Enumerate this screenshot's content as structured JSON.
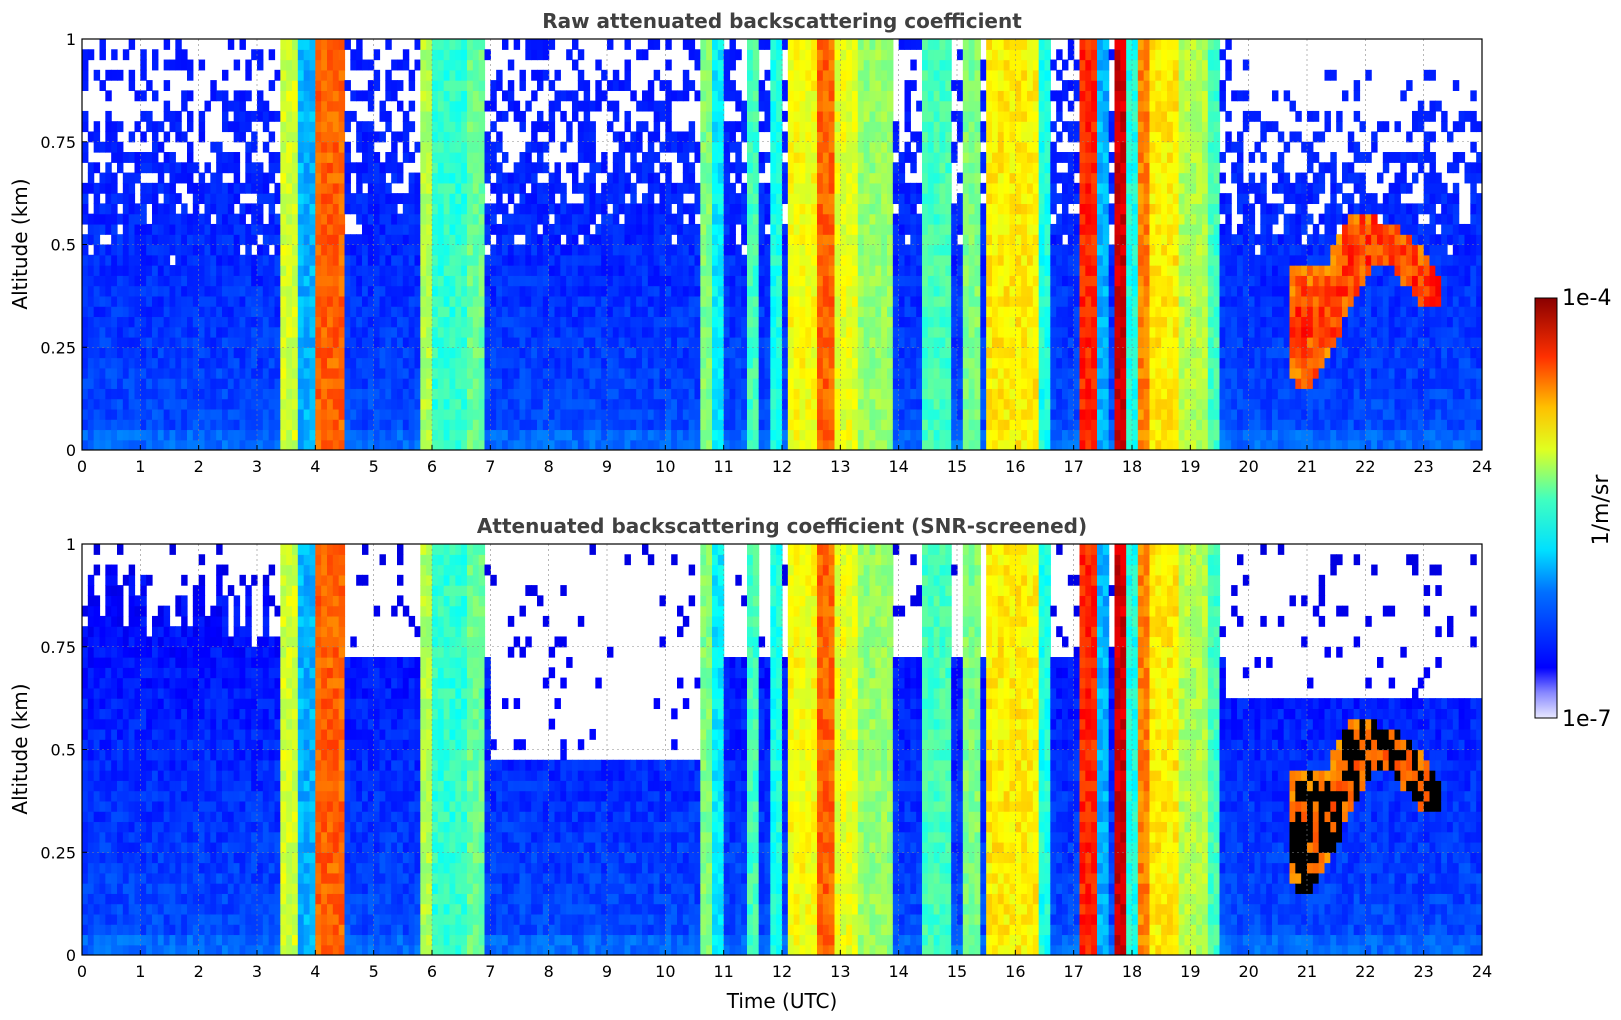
{
  "chart_data": [
    {
      "type": "heatmap",
      "title": "Raw attenuated backscattering coefficient",
      "xlabel": "",
      "ylabel": "Altitude (km)",
      "xlim": [
        0,
        24
      ],
      "ylim": [
        0,
        1
      ],
      "xticks": [
        "0",
        "1",
        "2",
        "3",
        "4",
        "5",
        "6",
        "7",
        "8",
        "9",
        "10",
        "11",
        "12",
        "13",
        "14",
        "15",
        "16",
        "17",
        "18",
        "19",
        "20",
        "21",
        "22",
        "23",
        "24"
      ],
      "yticks": [
        "0",
        "0.25",
        "0.5",
        "0.75",
        "1"
      ],
      "grid": true,
      "screened": false
    },
    {
      "type": "heatmap",
      "title": "Attenuated backscattering coefficient (SNR-screened)",
      "xlabel": "Time (UTC)",
      "ylabel": "Altitude (km)",
      "xlim": [
        0,
        24
      ],
      "ylim": [
        0,
        1
      ],
      "xticks": [
        "0",
        "1",
        "2",
        "3",
        "4",
        "5",
        "6",
        "7",
        "8",
        "9",
        "10",
        "11",
        "12",
        "13",
        "14",
        "15",
        "16",
        "17",
        "18",
        "19",
        "20",
        "21",
        "22",
        "23",
        "24"
      ],
      "yticks": [
        "0",
        "0.25",
        "0.5",
        "0.75",
        "1"
      ],
      "grid": true,
      "screened": true
    }
  ],
  "colorbar": {
    "label": "1/m/sr",
    "max_label": "1e-4",
    "min_label": "1e-7",
    "scale": "log",
    "range": [
      1e-07,
      0.0001
    ],
    "colormap": "jet"
  },
  "events": {
    "columns": [
      {
        "t0": 3.4,
        "t1": 3.7,
        "level": 0.58
      },
      {
        "t0": 3.7,
        "t1": 4.0,
        "level": 0.3
      },
      {
        "t0": 4.0,
        "t1": 4.5,
        "level": 0.78
      },
      {
        "t0": 5.8,
        "t1": 6.0,
        "level": 0.55
      },
      {
        "t0": 6.0,
        "t1": 6.6,
        "level": 0.42
      },
      {
        "t0": 6.6,
        "t1": 6.9,
        "level": 0.48
      },
      {
        "t0": 10.6,
        "t1": 10.8,
        "level": 0.5
      },
      {
        "t0": 10.8,
        "t1": 11.0,
        "level": 0.36
      },
      {
        "t0": 11.4,
        "t1": 11.6,
        "level": 0.44
      },
      {
        "t0": 11.8,
        "t1": 12.0,
        "level": 0.4
      },
      {
        "t0": 12.1,
        "t1": 12.6,
        "level": 0.62
      },
      {
        "t0": 12.6,
        "t1": 12.9,
        "level": 0.78
      },
      {
        "t0": 12.9,
        "t1": 13.3,
        "level": 0.6
      },
      {
        "t0": 13.3,
        "t1": 13.9,
        "level": 0.52
      },
      {
        "t0": 14.4,
        "t1": 14.9,
        "level": 0.44
      },
      {
        "t0": 15.1,
        "t1": 15.4,
        "level": 0.5
      },
      {
        "t0": 15.5,
        "t1": 16.4,
        "level": 0.64
      },
      {
        "t0": 16.4,
        "t1": 16.6,
        "level": 0.4
      },
      {
        "t0": 17.1,
        "t1": 17.4,
        "level": 0.84
      },
      {
        "t0": 17.4,
        "t1": 17.6,
        "level": 0.3
      },
      {
        "t0": 17.7,
        "t1": 17.9,
        "level": 0.92
      },
      {
        "t0": 17.9,
        "t1": 18.1,
        "level": 0.4
      },
      {
        "t0": 18.1,
        "t1": 18.3,
        "level": 0.75
      },
      {
        "t0": 18.3,
        "t1": 18.8,
        "level": 0.64
      },
      {
        "t0": 18.8,
        "t1": 19.3,
        "level": 0.55
      },
      {
        "t0": 19.3,
        "t1": 19.5,
        "level": 0.44
      }
    ],
    "cloud_layer": [
      {
        "t": 20.7,
        "bottom": 0.17,
        "top": 0.45
      },
      {
        "t": 21.0,
        "bottom": 0.15,
        "top": 0.45
      },
      {
        "t": 21.3,
        "bottom": 0.2,
        "top": 0.44
      },
      {
        "t": 21.6,
        "bottom": 0.3,
        "top": 0.55
      },
      {
        "t": 21.9,
        "bottom": 0.4,
        "top": 0.58
      },
      {
        "t": 22.2,
        "bottom": 0.46,
        "top": 0.56
      },
      {
        "t": 22.5,
        "bottom": 0.44,
        "top": 0.55
      },
      {
        "t": 22.8,
        "bottom": 0.38,
        "top": 0.52
      },
      {
        "t": 23.1,
        "bottom": 0.34,
        "top": 0.46
      },
      {
        "t": 23.3,
        "bottom": 0.34,
        "top": 0.42
      }
    ]
  }
}
